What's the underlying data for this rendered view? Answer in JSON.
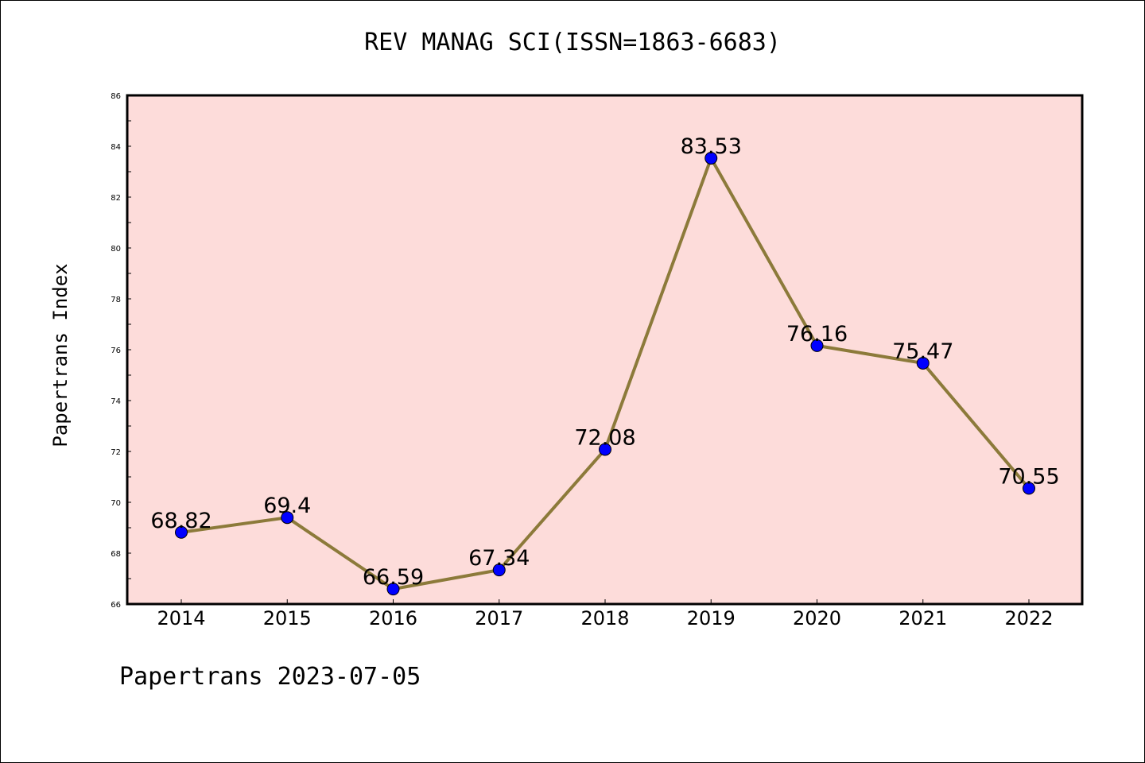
{
  "chart_data": {
    "type": "line",
    "title": "REV MANAG SCI(ISSN=1863-6683)",
    "xlabel": "",
    "ylabel": "Papertrans Index",
    "categories": [
      "2014",
      "2015",
      "2016",
      "2017",
      "2018",
      "2019",
      "2020",
      "2021",
      "2022"
    ],
    "series": [
      {
        "values": [
          68.82,
          69.4,
          66.59,
          67.34,
          72.08,
          83.53,
          76.16,
          75.47,
          70.55
        ]
      }
    ],
    "data_labels": [
      "68.82",
      "69.4",
      "66.59",
      "67.34",
      "72.08",
      "83.53",
      "76.16",
      "75.47",
      "70.55"
    ],
    "y_ticks": [
      "66",
      "68",
      "70",
      "72",
      "74",
      "76",
      "78",
      "80",
      "82",
      "84",
      "86"
    ],
    "ylim": [
      66,
      86
    ],
    "grid": false,
    "colors": {
      "background": "#ffffff",
      "plot_background": "#fddcda",
      "line": "#8c7a3a",
      "marker": "#0000ff"
    }
  },
  "footer": "Papertrans 2023-07-05"
}
